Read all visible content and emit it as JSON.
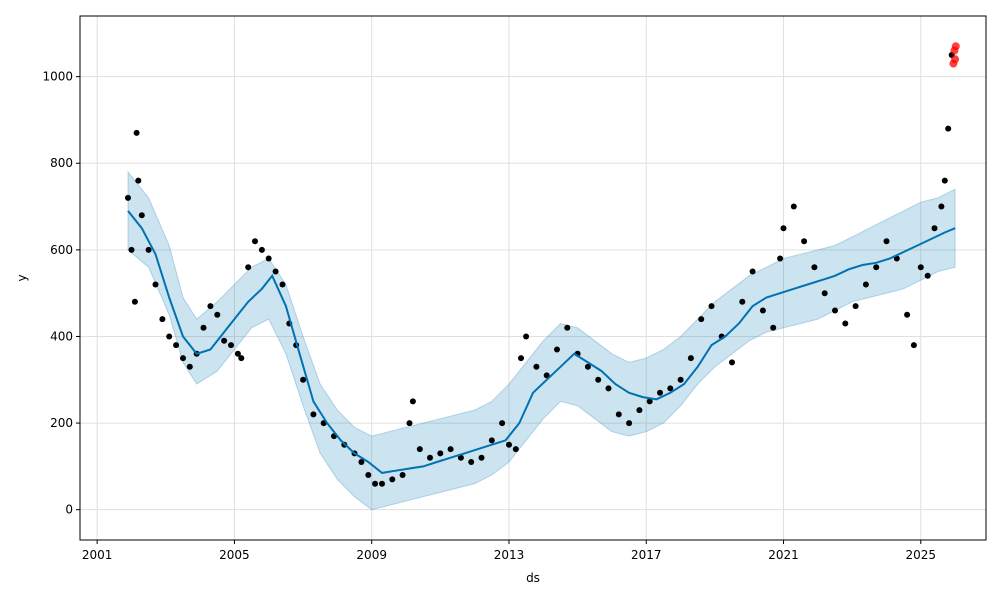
{
  "chart_data": {
    "type": "line",
    "title": "",
    "xlabel": "ds",
    "ylabel": "y",
    "xlim": [
      2000.5,
      2026.9
    ],
    "ylim": [
      -70,
      1140
    ],
    "grid": true,
    "x_ticks": [
      2001,
      2005,
      2009,
      2013,
      2017,
      2021,
      2025
    ],
    "x_tick_labels": [
      "2001",
      "2005",
      "2009",
      "2013",
      "2017",
      "2021",
      "2025"
    ],
    "y_ticks": [
      0,
      200,
      400,
      600,
      800,
      1000
    ],
    "y_tick_labels": [
      "0",
      "200",
      "400",
      "600",
      "800",
      "1000"
    ],
    "colors": {
      "observed": "#000000",
      "forecast": "#0072B2",
      "uncertainty": "#0072B2",
      "highlight": "#ff0000",
      "grid": "#e0e0e0"
    },
    "series": [
      {
        "role": "forecast_yhat",
        "x": [
          2001.9,
          2002.3,
          2002.7,
          2003.1,
          2003.5,
          2003.9,
          2004.3,
          2004.7,
          2005.0,
          2005.4,
          2005.8,
          2006.1,
          2006.5,
          2006.9,
          2007.3,
          2007.7,
          2008.1,
          2008.5,
          2008.9,
          2009.3,
          2009.7,
          2010.1,
          2010.5,
          2010.9,
          2011.3,
          2011.7,
          2012.1,
          2012.5,
          2012.9,
          2013.3,
          2013.7,
          2014.1,
          2014.5,
          2014.9,
          2015.3,
          2015.7,
          2016.1,
          2016.5,
          2016.9,
          2017.3,
          2017.7,
          2018.1,
          2018.5,
          2018.9,
          2019.3,
          2019.7,
          2020.1,
          2020.5,
          2020.9,
          2021.3,
          2021.7,
          2022.1,
          2022.5,
          2022.9,
          2023.3,
          2023.7,
          2024.1,
          2024.5,
          2024.9,
          2025.3,
          2025.7,
          2026.0
        ],
        "values": [
          690,
          650,
          590,
          490,
          400,
          360,
          370,
          410,
          440,
          480,
          510,
          540,
          470,
          360,
          250,
          200,
          160,
          130,
          110,
          85,
          90,
          95,
          100,
          110,
          120,
          130,
          140,
          150,
          160,
          200,
          270,
          300,
          330,
          360,
          340,
          320,
          290,
          270,
          260,
          255,
          270,
          290,
          330,
          380,
          400,
          430,
          470,
          490,
          500,
          510,
          520,
          530,
          540,
          555,
          565,
          570,
          580,
          595,
          610,
          625,
          640,
          650
        ]
      },
      {
        "role": "uncertainty_lower",
        "x": [
          2001.9,
          2002.5,
          2003.1,
          2003.5,
          2003.9,
          2004.5,
          2005.0,
          2005.5,
          2006.0,
          2006.5,
          2007.0,
          2007.5,
          2008.0,
          2008.5,
          2009.0,
          2009.5,
          2010.0,
          2010.5,
          2011.0,
          2011.5,
          2012.0,
          2012.5,
          2013.0,
          2013.5,
          2014.0,
          2014.5,
          2015.0,
          2015.5,
          2016.0,
          2016.5,
          2017.0,
          2017.5,
          2018.0,
          2018.5,
          2019.0,
          2019.5,
          2020.0,
          2020.5,
          2021.0,
          2021.5,
          2022.0,
          2022.5,
          2023.0,
          2023.5,
          2024.0,
          2024.5,
          2025.0,
          2025.5,
          2026.0
        ],
        "values": [
          600,
          560,
          450,
          340,
          290,
          320,
          370,
          420,
          440,
          360,
          240,
          130,
          70,
          30,
          0,
          10,
          20,
          30,
          40,
          50,
          60,
          80,
          110,
          160,
          210,
          250,
          240,
          210,
          180,
          170,
          180,
          200,
          240,
          290,
          330,
          360,
          390,
          410,
          420,
          430,
          440,
          460,
          480,
          490,
          500,
          510,
          530,
          550,
          560
        ]
      },
      {
        "role": "uncertainty_upper",
        "x": [
          2001.9,
          2002.5,
          2003.1,
          2003.5,
          2003.9,
          2004.5,
          2005.0,
          2005.5,
          2006.0,
          2006.5,
          2007.0,
          2007.5,
          2008.0,
          2008.5,
          2009.0,
          2009.5,
          2010.0,
          2010.5,
          2011.0,
          2011.5,
          2012.0,
          2012.5,
          2013.0,
          2013.5,
          2014.0,
          2014.5,
          2015.0,
          2015.5,
          2016.0,
          2016.5,
          2017.0,
          2017.5,
          2018.0,
          2018.5,
          2019.0,
          2019.5,
          2020.0,
          2020.5,
          2021.0,
          2021.5,
          2022.0,
          2022.5,
          2023.0,
          2023.5,
          2024.0,
          2024.5,
          2025.0,
          2025.5,
          2026.0
        ],
        "values": [
          780,
          720,
          610,
          490,
          440,
          480,
          520,
          560,
          580,
          520,
          400,
          290,
          230,
          190,
          170,
          180,
          190,
          200,
          210,
          220,
          230,
          250,
          290,
          340,
          390,
          430,
          420,
          390,
          360,
          340,
          350,
          370,
          400,
          440,
          480,
          510,
          540,
          560,
          580,
          590,
          600,
          610,
          630,
          650,
          670,
          690,
          710,
          720,
          740
        ]
      },
      {
        "role": "observed_points",
        "x": [
          2001.9,
          2002.0,
          2002.1,
          2002.15,
          2002.2,
          2002.3,
          2002.5,
          2002.7,
          2002.9,
          2003.1,
          2003.3,
          2003.5,
          2003.7,
          2003.9,
          2004.1,
          2004.3,
          2004.5,
          2004.7,
          2004.9,
          2005.1,
          2005.2,
          2005.4,
          2005.6,
          2005.8,
          2006.0,
          2006.2,
          2006.4,
          2006.6,
          2006.8,
          2007.0,
          2007.3,
          2007.6,
          2007.9,
          2008.2,
          2008.5,
          2008.7,
          2008.9,
          2009.1,
          2009.3,
          2009.6,
          2009.9,
          2010.1,
          2010.2,
          2010.4,
          2010.7,
          2011.0,
          2011.3,
          2011.6,
          2011.9,
          2012.2,
          2012.5,
          2012.8,
          2013.0,
          2013.2,
          2013.35,
          2013.5,
          2013.8,
          2014.1,
          2014.4,
          2014.7,
          2015.0,
          2015.3,
          2015.6,
          2015.9,
          2016.2,
          2016.5,
          2016.8,
          2017.1,
          2017.4,
          2017.7,
          2018.0,
          2018.3,
          2018.6,
          2018.9,
          2019.2,
          2019.5,
          2019.8,
          2020.1,
          2020.4,
          2020.7,
          2020.9,
          2021.0,
          2021.3,
          2021.6,
          2021.9,
          2022.2,
          2022.5,
          2022.8,
          2023.1,
          2023.4,
          2023.7,
          2024.0,
          2024.3,
          2024.6,
          2024.8,
          2025.0,
          2025.2,
          2025.4,
          2025.6,
          2025.7,
          2025.8,
          2025.9
        ],
        "values": [
          720,
          600,
          480,
          870,
          760,
          680,
          600,
          520,
          440,
          400,
          380,
          350,
          330,
          360,
          420,
          470,
          450,
          390,
          380,
          360,
          350,
          560,
          620,
          600,
          580,
          550,
          520,
          430,
          380,
          300,
          220,
          200,
          170,
          150,
          130,
          110,
          80,
          60,
          60,
          70,
          80,
          200,
          250,
          140,
          120,
          130,
          140,
          120,
          110,
          120,
          160,
          200,
          150,
          140,
          350,
          400,
          330,
          310,
          370,
          420,
          360,
          330,
          300,
          280,
          220,
          200,
          230,
          250,
          270,
          280,
          300,
          350,
          440,
          470,
          400,
          340,
          480,
          550,
          460,
          420,
          580,
          650,
          700,
          620,
          560,
          500,
          460,
          430,
          470,
          520,
          560,
          620,
          580,
          450,
          380,
          560,
          540,
          650,
          700,
          760,
          880,
          1050
        ]
      },
      {
        "role": "highlight_points",
        "x": [
          2025.95,
          2025.98,
          2026.0,
          2026.02
        ],
        "values": [
          1030,
          1060,
          1040,
          1070
        ]
      }
    ]
  }
}
